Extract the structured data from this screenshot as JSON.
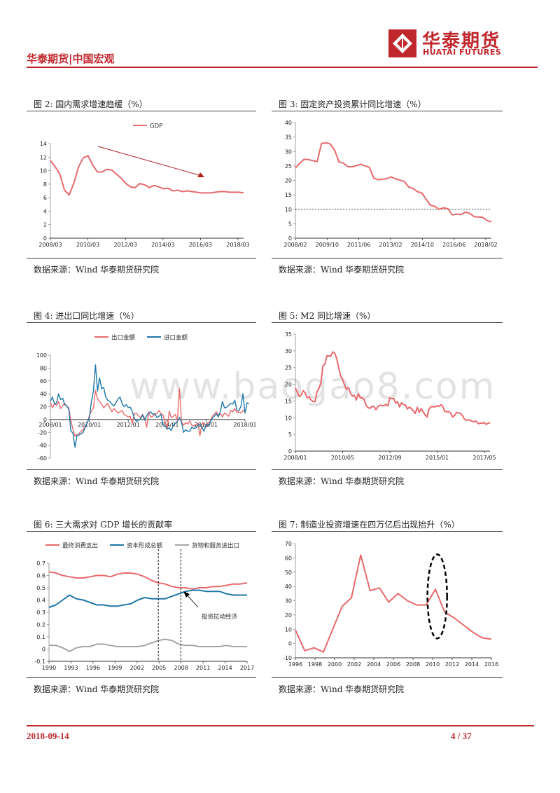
{
  "header": {
    "section": "华泰期货|中国宏观",
    "logo_cn": "华泰期货",
    "logo_en": "HUATAI FUTURES"
  },
  "watermark": "www.baogao8.com",
  "footer": {
    "date": "2018-09-14",
    "page": "4 / 37"
  },
  "source": "数据来源：Wind 华泰期货研究院",
  "charts": [
    {
      "id": "fig2",
      "caption": "图 2:  国内需求增速趋缓（%）",
      "chart_data": {
        "type": "line",
        "legend": [
          "GDP"
        ],
        "x_ticks": [
          "2008/03",
          "2010/03",
          "2012/03",
          "2014/03",
          "2016/03",
          "2018/03"
        ],
        "ylim": [
          0,
          14
        ],
        "y_ticks": [
          0,
          2,
          4,
          6,
          8,
          10,
          12,
          14
        ],
        "series": [
          {
            "name": "GDP",
            "color": "#e8696b",
            "values": [
              11.5,
              10.6,
              9.5,
              7.1,
              6.4,
              8.2,
              10.6,
              11.9,
              12.2,
              10.8,
              9.8,
              9.8,
              10.2,
              10.1,
              9.5,
              8.9,
              8.1,
              7.6,
              7.5,
              8.1,
              7.9,
              7.5,
              7.8,
              7.6,
              7.3,
              7.4,
              7.0,
              7.1,
              6.9,
              7.0,
              6.9,
              6.8,
              6.7,
              6.7,
              6.7,
              6.8,
              6.9,
              6.9,
              6.8,
              6.8,
              6.8,
              6.7
            ]
          }
        ],
        "annotation": "downward trend arrow"
      }
    },
    {
      "id": "fig3",
      "caption": "图 3:      固定资产投资累计同比增速（%）",
      "chart_data": {
        "type": "line",
        "x_ticks": [
          "2008/02",
          "2009/10",
          "2011/06",
          "2013/02",
          "2014/10",
          "2016/06",
          "2018/02"
        ],
        "ylim": [
          0,
          40
        ],
        "y_ticks": [
          0,
          5,
          10,
          15,
          20,
          25,
          30,
          35,
          40
        ],
        "reference_line": 10,
        "series": [
          {
            "name": "固定资产投资累计同比",
            "color": "#e8696b",
            "values": [
              24.3,
              25.9,
              27.3,
              27.2,
              26.8,
              26.5,
              32.8,
              33.0,
              32.6,
              30.5,
              26.4,
              26.0,
              24.8,
              24.7,
              25.1,
              25.6,
              25.0,
              24.5,
              20.8,
              20.2,
              20.4,
              20.6,
              21.2,
              20.5,
              20.1,
              19.6,
              17.7,
              17.2,
              16.1,
              15.7,
              13.5,
              11.4,
              11.0,
              10.0,
              10.5,
              10.2,
              8.1,
              8.3,
              8.2,
              9.0,
              8.6,
              7.5,
              7.3,
              7.2,
              6.1,
              5.7
            ]
          }
        ]
      }
    },
    {
      "id": "fig4",
      "caption": "图 4:  进出口同比增速（%）",
      "chart_data": {
        "type": "line",
        "legend": [
          "出口金额",
          "进口金额"
        ],
        "x_ticks": [
          "2008/01",
          "2010/01",
          "2012/01",
          "2014/01",
          "2016/01",
          "2018/01"
        ],
        "ylim": [
          -60,
          100
        ],
        "y_ticks": [
          -60,
          -40,
          -20,
          0,
          20,
          40,
          60,
          80,
          100
        ],
        "series": [
          {
            "name": "出口金额",
            "color": "#e8696b",
            "values": [
              27,
              18,
              25,
              22,
              28,
              17,
              22,
              25,
              21,
              18,
              -2,
              -15,
              -26,
              -23,
              -22,
              -18,
              -16,
              -10,
              -5,
              6,
              13,
              18,
              45,
              32,
              28,
              24,
              18,
              22,
              25,
              18,
              12,
              17,
              14,
              10,
              12,
              14,
              8,
              6,
              4,
              5,
              -6,
              9,
              10,
              6,
              3,
              8,
              2,
              -12,
              12,
              4,
              5,
              8,
              10,
              14,
              9,
              7,
              -3,
              -15,
              13,
              3,
              5,
              8,
              -2,
              48,
              -3,
              -9,
              -5,
              -7,
              -2,
              -9,
              -10,
              -8,
              -6,
              -25,
              -7,
              -5,
              -12,
              -5,
              -3,
              5,
              8,
              12,
              7,
              9,
              4,
              10,
              8,
              5,
              14,
              12,
              17,
              11,
              12,
              10,
              14,
              12
            ]
          },
          {
            "name": "进口金额",
            "color": "#1f77a8",
            "values": [
              28,
              35,
              24,
              26,
              40,
              31,
              33,
              23,
              21,
              16,
              -18,
              -21,
              -43,
              -25,
              -24,
              -22,
              -20,
              -12,
              -5,
              3,
              27,
              45,
              85,
              44,
              65,
              48,
              50,
              35,
              30,
              28,
              24,
              21,
              26,
              32,
              35,
              25,
              20,
              23,
              19,
              19,
              12,
              2,
              -3,
              -1,
              1,
              7,
              -1,
              6,
              10,
              12,
              8,
              9,
              3,
              5,
              8,
              -8,
              -10,
              -15,
              -13,
              -17,
              -9,
              -6,
              -3,
              3,
              -4,
              -20,
              -16,
              -18,
              -18,
              -12,
              -14,
              -13,
              -9,
              -8,
              -12,
              -18,
              -8,
              -10,
              -4,
              2,
              5,
              9,
              4,
              13,
              28,
              18,
              19,
              22,
              25,
              24,
              30,
              15,
              14,
              20,
              40,
              10,
              26,
              24
            ]
          }
        ]
      }
    },
    {
      "id": "fig5",
      "caption": "图 5:      M2 同比增速（%）",
      "chart_data": {
        "type": "line",
        "x_ticks": [
          "2008/01",
          "2010/05",
          "2012/09",
          "2015/01",
          "2017/05"
        ],
        "ylim": [
          0,
          35
        ],
        "y_ticks": [
          0,
          5,
          10,
          15,
          20,
          25,
          30,
          35
        ],
        "series": [
          {
            "name": "M2同比",
            "color": "#e8696b",
            "values": [
              18.9,
              17.5,
              16.3,
              16.9,
              18.1,
              17.4,
              16.0,
              16.2,
              15.3,
              14.8,
              14.8,
              17.8,
              18.8,
              20.5,
              25.5,
              26.0,
              28.5,
              28.5,
              28.4,
              29.7,
              29.3,
              27.7,
              25.0,
              22.5,
              21.5,
              19.7,
              18.5,
              19.0,
              17.4,
              16.5,
              16.7,
              15.3,
              17.2,
              16.0,
              15.9,
              15.4,
              13.6,
              13.0,
              12.8,
              13.4,
              13.3,
              12.4,
              13.3,
              13.8,
              13.6,
              13.6,
              14.0,
              13.5,
              15.9,
              15.7,
              15.8,
              14.4,
              14.8,
              13.2,
              14.5,
              13.9,
              13.8,
              12.6,
              13.2,
              12.7,
              12.1,
              11.3,
              13.1,
              11.6,
              12.7,
              11.8,
              10.8,
              10.2,
              12.6,
              13.3,
              13.3,
              13.2,
              13.6,
              13.4,
              13.9,
              13.3,
              11.9,
              11.8,
              11.8,
              11.4,
              10.2,
              10.7,
              11.6,
              11.4,
              11.3,
              10.6,
              9.6,
              9.2,
              9.4,
              9.2,
              8.9,
              8.8,
              9.0,
              8.2,
              8.4,
              8.3,
              8.6,
              8.0,
              8.3,
              8.5
            ]
          }
        ]
      }
    },
    {
      "id": "fig6",
      "caption": "图 6:  三大需求对 GDP 增长的贡献率",
      "chart_data": {
        "type": "line",
        "legend": [
          "最终消费支出",
          "资本形成总额",
          "货物和服务进出口"
        ],
        "x_ticks": [
          "1990",
          "1993",
          "1996",
          "1999",
          "2002",
          "2005",
          "2008",
          "2011",
          "2014",
          "2017"
        ],
        "ylim": [
          -0.1,
          0.7
        ],
        "y_ticks": [
          -0.1,
          0,
          0.1,
          0.2,
          0.3,
          0.4,
          0.5,
          0.6,
          0.7
        ],
        "annotation": "投资拉动经济",
        "series": [
          {
            "name": "最终消费支出",
            "color": "#e8696b",
            "values": [
              0.63,
              0.62,
              0.6,
              0.59,
              0.58,
              0.58,
              0.59,
              0.6,
              0.6,
              0.59,
              0.61,
              0.62,
              0.62,
              0.61,
              0.59,
              0.56,
              0.54,
              0.53,
              0.51,
              0.5,
              0.5,
              0.49,
              0.5,
              0.5,
              0.51,
              0.51,
              0.52,
              0.53,
              0.53,
              0.54
            ]
          },
          {
            "name": "资本形成总额",
            "color": "#1f77a8",
            "values": [
              0.34,
              0.36,
              0.4,
              0.44,
              0.41,
              0.4,
              0.38,
              0.36,
              0.36,
              0.35,
              0.35,
              0.36,
              0.37,
              0.4,
              0.42,
              0.41,
              0.41,
              0.41,
              0.43,
              0.45,
              0.47,
              0.48,
              0.48,
              0.47,
              0.47,
              0.47,
              0.45,
              0.44,
              0.44,
              0.44
            ]
          },
          {
            "name": "货物和服务进出口",
            "color": "#a5a5a5",
            "values": [
              0.03,
              0.03,
              0.01,
              -0.02,
              0.01,
              0.02,
              0.02,
              0.04,
              0.04,
              0.03,
              0.02,
              0.02,
              0.02,
              0.02,
              0.03,
              0.05,
              0.07,
              0.08,
              0.07,
              0.04,
              0.03,
              0.03,
              0.02,
              0.02,
              0.02,
              0.02,
              0.03,
              0.02,
              0.02,
              0.02
            ]
          }
        ]
      }
    },
    {
      "id": "fig7",
      "caption": "图 7:      制造业投资增速在四万亿后出现抬升（%）",
      "chart_data": {
        "type": "line",
        "x_ticks": [
          "1996",
          "1998",
          "2000",
          "2002",
          "2004",
          "2006",
          "2008",
          "2010",
          "2012",
          "2014",
          "2016"
        ],
        "ylim": [
          -10,
          70
        ],
        "y_ticks": [
          -10,
          0,
          10,
          20,
          30,
          40,
          50,
          60,
          70
        ],
        "series": [
          {
            "name": "制造业投资增速",
            "color": "#e8696b",
            "values": [
              9.5,
              -5,
              -3,
              -6,
              10,
              26,
              32,
              62,
              37,
              39,
              29,
              35,
              30,
              27,
              27,
              38,
              22,
              18,
              13,
              8,
              4,
              3
            ]
          }
        ]
      }
    }
  ]
}
